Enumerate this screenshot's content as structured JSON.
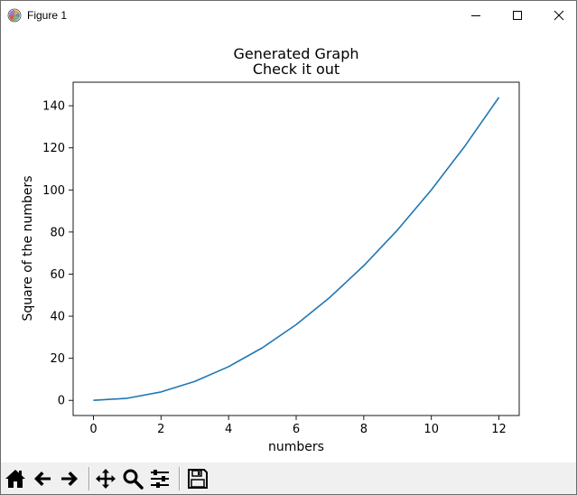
{
  "window": {
    "title": "Figure 1",
    "icon": "matplotlib-icon",
    "controls": {
      "minimize_icon": "minimize-icon",
      "maximize_icon": "maximize-icon",
      "close_icon": "close-icon"
    }
  },
  "chart_data": {
    "type": "line",
    "title": "Generated Graph",
    "subtitle": "Check it out",
    "xlabel": "numbers",
    "ylabel": "Square of the numbers",
    "x": [
      0,
      1,
      2,
      3,
      4,
      5,
      6,
      7,
      8,
      9,
      10,
      11,
      12
    ],
    "series": [
      {
        "values": [
          0,
          1,
          4,
          9,
          16,
          25,
          36,
          49,
          64,
          81,
          100,
          121,
          144
        ],
        "color": "#1f77b4"
      }
    ],
    "xlim": [
      -0.6,
      12.6
    ],
    "ylim": [
      -7.2,
      151.2
    ],
    "xticks": [
      0,
      2,
      4,
      6,
      8,
      10,
      12
    ],
    "yticks": [
      0,
      20,
      40,
      60,
      80,
      100,
      120,
      140
    ],
    "grid": false,
    "legend": "none"
  },
  "toolbar": {
    "items": [
      {
        "name": "home-icon"
      },
      {
        "name": "back-arrow-icon"
      },
      {
        "name": "forward-arrow-icon"
      },
      {
        "name": "pan-icon"
      },
      {
        "name": "zoom-icon"
      },
      {
        "name": "configure-subplots-icon"
      },
      {
        "name": "save-icon"
      }
    ]
  }
}
